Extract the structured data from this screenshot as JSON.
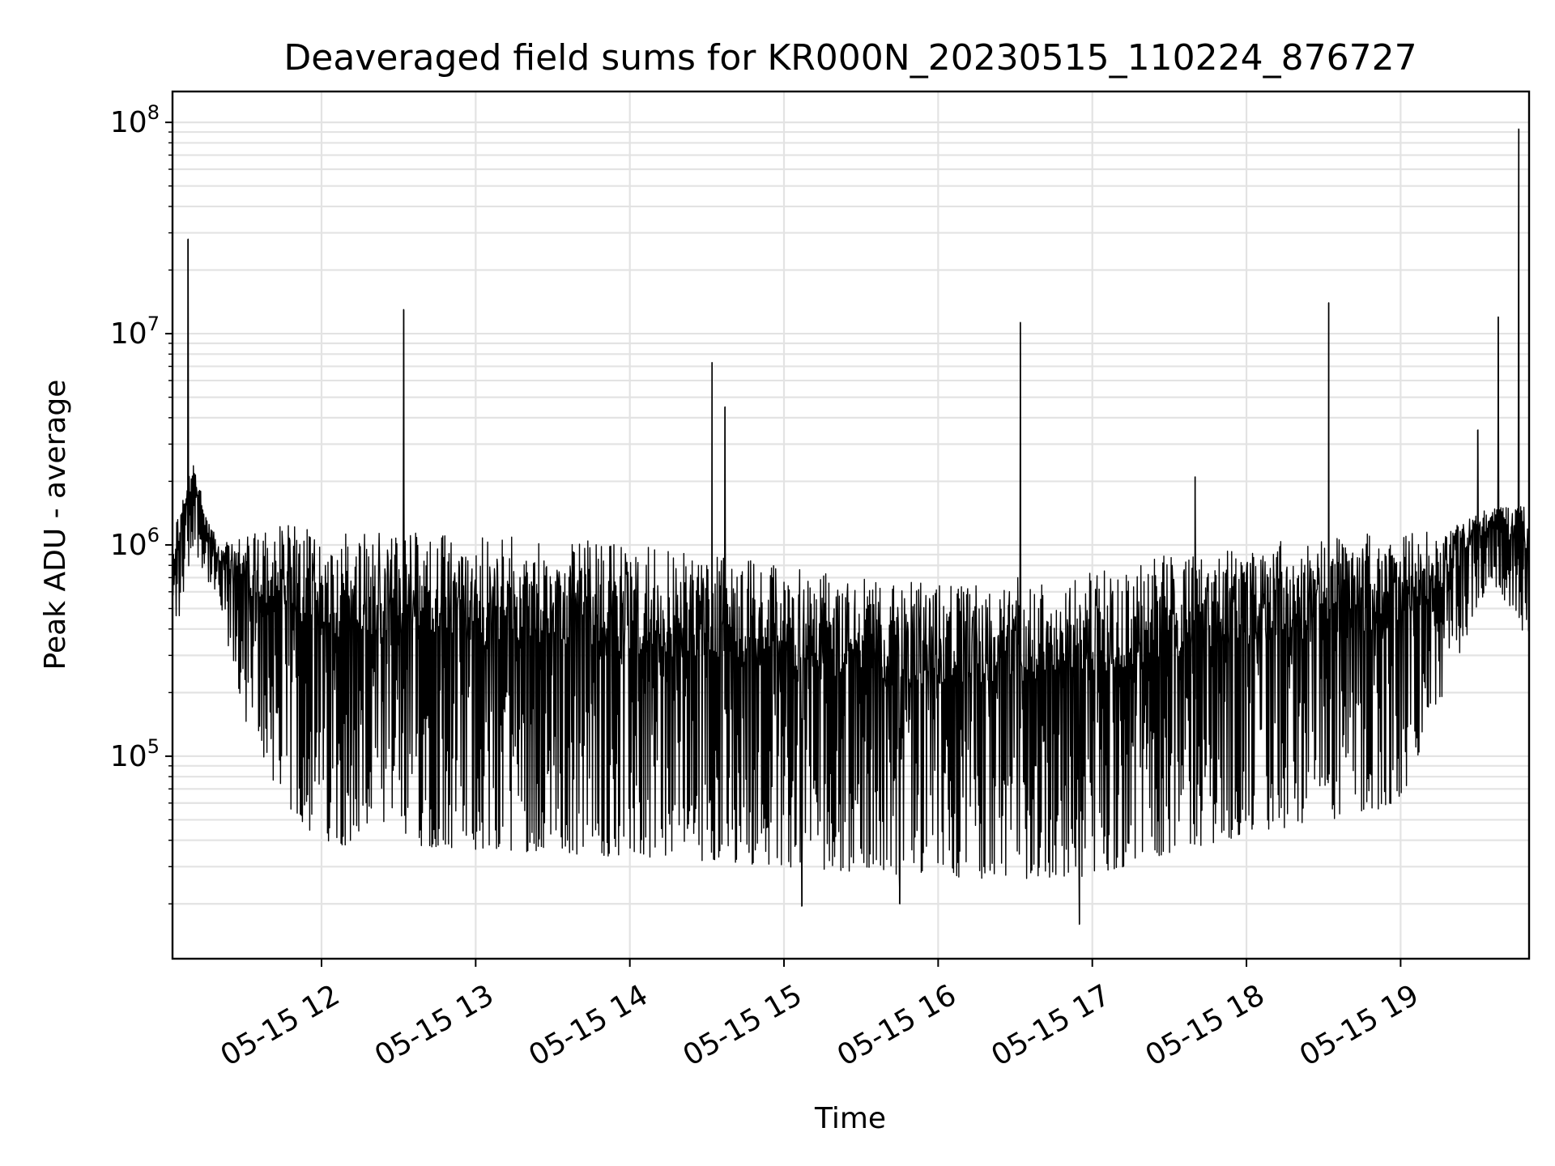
{
  "chart_data": {
    "type": "line",
    "title": "Deaveraged field sums for KR000N_20230515_110224_876727",
    "xlabel": "Time",
    "ylabel": "Peak ADU - average",
    "yscale": "log",
    "grid": true,
    "xlim": [
      "2023-05-15 11:02",
      "2023-05-15 19:50"
    ],
    "ylim": [
      11000,
      140000000
    ],
    "x_ticks": [
      {
        "value": "2023-05-15 12:00",
        "label": "05-15 12"
      },
      {
        "value": "2023-05-15 13:00",
        "label": "05-15 13"
      },
      {
        "value": "2023-05-15 14:00",
        "label": "05-15 14"
      },
      {
        "value": "2023-05-15 15:00",
        "label": "05-15 15"
      },
      {
        "value": "2023-05-15 16:00",
        "label": "05-15 16"
      },
      {
        "value": "2023-05-15 17:00",
        "label": "05-15 17"
      },
      {
        "value": "2023-05-15 18:00",
        "label": "05-15 18"
      },
      {
        "value": "2023-05-15 19:00",
        "label": "05-15 19"
      }
    ],
    "y_ticks": [
      {
        "value": 100000,
        "base": "10",
        "exp": "5"
      },
      {
        "value": 1000000,
        "base": "10",
        "exp": "6"
      },
      {
        "value": 10000000,
        "base": "10",
        "exp": "7"
      },
      {
        "value": 100000000,
        "base": "10",
        "exp": "8"
      }
    ],
    "series": [
      {
        "color": "#000000",
        "envelope": [
          {
            "t": "2023-05-15 11:02",
            "high": 1200000,
            "low": 300000
          },
          {
            "t": "2023-05-15 11:10",
            "high": 2500000,
            "low": 1000000
          },
          {
            "t": "2023-05-15 11:20",
            "high": 1000000,
            "low": 500000
          },
          {
            "t": "2023-05-15 11:30",
            "high": 1100000,
            "low": 150000
          },
          {
            "t": "2023-05-15 11:45",
            "high": 1300000,
            "low": 60000
          },
          {
            "t": "2023-05-15 12:00",
            "high": 1150000,
            "low": 38000
          },
          {
            "t": "2023-05-15 12:30",
            "high": 1150000,
            "low": 38000
          },
          {
            "t": "2023-05-15 13:00",
            "high": 1100000,
            "low": 36000
          },
          {
            "t": "2023-05-15 13:30",
            "high": 1100000,
            "low": 35000
          },
          {
            "t": "2023-05-15 14:00",
            "high": 1000000,
            "low": 33000
          },
          {
            "t": "2023-05-15 14:30",
            "high": 900000,
            "low": 32000
          },
          {
            "t": "2023-05-15 15:00",
            "high": 800000,
            "low": 30000
          },
          {
            "t": "2023-05-15 15:30",
            "high": 700000,
            "low": 28000
          },
          {
            "t": "2023-05-15 16:00",
            "high": 650000,
            "low": 27000
          },
          {
            "t": "2023-05-15 16:30",
            "high": 700000,
            "low": 26000
          },
          {
            "t": "2023-05-15 17:00",
            "high": 750000,
            "low": 27000
          },
          {
            "t": "2023-05-15 17:30",
            "high": 900000,
            "low": 35000
          },
          {
            "t": "2023-05-15 18:00",
            "high": 1000000,
            "low": 42000
          },
          {
            "t": "2023-05-15 18:30",
            "high": 1100000,
            "low": 48000
          },
          {
            "t": "2023-05-15 19:00",
            "high": 1150000,
            "low": 60000
          },
          {
            "t": "2023-05-15 19:20",
            "high": 1200000,
            "low": 250000
          },
          {
            "t": "2023-05-15 19:35",
            "high": 1600000,
            "low": 700000
          },
          {
            "t": "2023-05-15 19:50",
            "high": 1500000,
            "low": 350000
          }
        ],
        "spikes": [
          {
            "t": "2023-05-15 11:08",
            "value": 28000000
          },
          {
            "t": "2023-05-15 12:32",
            "value": 13000000
          },
          {
            "t": "2023-05-15 14:32",
            "value": 7300000
          },
          {
            "t": "2023-05-15 14:37",
            "value": 4500000
          },
          {
            "t": "2023-05-15 16:32",
            "value": 11300000
          },
          {
            "t": "2023-05-15 17:40",
            "value": 2100000
          },
          {
            "t": "2023-05-15 18:32",
            "value": 14000000
          },
          {
            "t": "2023-05-15 19:30",
            "value": 3500000
          },
          {
            "t": "2023-05-15 19:38",
            "value": 12000000
          },
          {
            "t": "2023-05-15 19:46",
            "value": 93000000
          }
        ],
        "dips": [
          {
            "t": "2023-05-15 16:55",
            "value": 16000
          },
          {
            "t": "2023-05-15 15:07",
            "value": 19500
          },
          {
            "t": "2023-05-15 15:45",
            "value": 20000
          }
        ]
      }
    ]
  }
}
